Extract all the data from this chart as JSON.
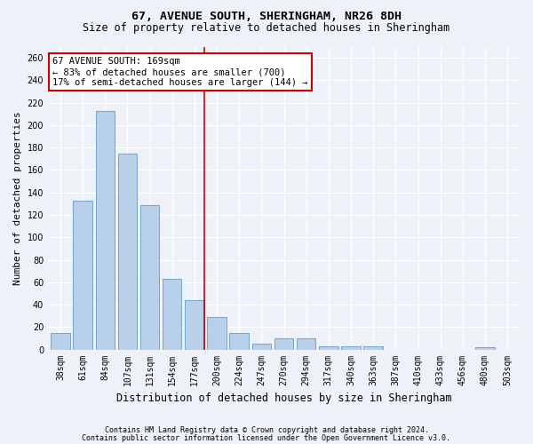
{
  "title1": "67, AVENUE SOUTH, SHERINGHAM, NR26 8DH",
  "title2": "Size of property relative to detached houses in Sheringham",
  "xlabel": "Distribution of detached houses by size in Sheringham",
  "ylabel": "Number of detached properties",
  "categories": [
    "38sqm",
    "61sqm",
    "84sqm",
    "107sqm",
    "131sqm",
    "154sqm",
    "177sqm",
    "200sqm",
    "224sqm",
    "247sqm",
    "270sqm",
    "294sqm",
    "317sqm",
    "340sqm",
    "363sqm",
    "387sqm",
    "410sqm",
    "433sqm",
    "456sqm",
    "480sqm",
    "503sqm"
  ],
  "values": [
    15,
    133,
    213,
    175,
    129,
    63,
    44,
    29,
    15,
    5,
    10,
    10,
    3,
    3,
    3,
    0,
    0,
    0,
    0,
    2,
    0
  ],
  "bar_color": "#b8d0ea",
  "bar_edge_color": "#6699cc",
  "vline_index": 6,
  "vline_color": "#cc0000",
  "ylim": [
    0,
    270
  ],
  "yticks": [
    0,
    20,
    40,
    60,
    80,
    100,
    120,
    140,
    160,
    180,
    200,
    220,
    240,
    260
  ],
  "annotation_line1": "67 AVENUE SOUTH: 169sqm",
  "annotation_line2": "← 83% of detached houses are smaller (700)",
  "annotation_line3": "17% of semi-detached houses are larger (144) →",
  "annotation_box_color": "#ffffff",
  "annotation_box_edge": "#cc0000",
  "footer1": "Contains HM Land Registry data © Crown copyright and database right 2024.",
  "footer2": "Contains public sector information licensed under the Open Government Licence v3.0.",
  "bg_color": "#eef2f8",
  "grid_color": "#ffffff",
  "title1_fontsize": 9.5,
  "title2_fontsize": 8.5,
  "ylabel_fontsize": 8,
  "xlabel_fontsize": 8.5,
  "tick_fontsize": 7,
  "ann_fontsize": 7.5,
  "footer_fontsize": 6
}
